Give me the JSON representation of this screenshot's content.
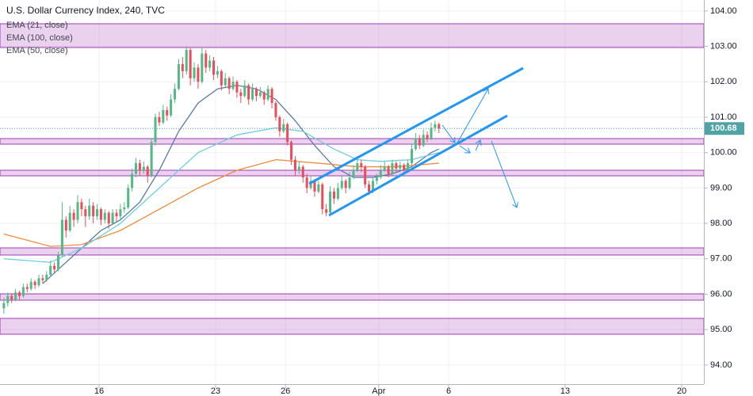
{
  "chart_data": {
    "type": "candlestick",
    "title": "U.S. Dollar Currency Index, 240, TVC",
    "xlim": [
      -1,
      180.2
    ],
    "xticks": [
      {
        "value": 24.5,
        "label": "16"
      },
      {
        "value": 54.5,
        "label": "23"
      },
      {
        "value": 72.5,
        "label": "26"
      },
      {
        "value": 96.5,
        "label": "Apr"
      },
      {
        "value": 114.5,
        "label": "6"
      },
      {
        "value": 144.5,
        "label": "13"
      },
      {
        "value": 174.5,
        "label": "20"
      }
    ],
    "ylim": [
      93.46,
      104.31
    ],
    "yticks": [
      {
        "value": 94,
        "label": "94.00"
      },
      {
        "value": 95,
        "label": "95.00"
      },
      {
        "value": 96,
        "label": "96.00"
      },
      {
        "value": 97,
        "label": "97.00"
      },
      {
        "value": 98,
        "label": "98.00"
      },
      {
        "value": 99,
        "label": "99.00"
      },
      {
        "value": 100,
        "label": "100.00"
      },
      {
        "value": 101,
        "label": "101.00"
      },
      {
        "value": 102,
        "label": "102.00"
      },
      {
        "value": 103,
        "label": "103.00"
      },
      {
        "value": 104,
        "label": "104.00"
      }
    ],
    "grid": true,
    "up_color": "#53b987",
    "down_color": "#eb4d5c",
    "last_price_color": "#4fa3a5",
    "x": [
      0,
      1,
      2,
      3,
      4,
      5,
      6,
      7,
      8,
      9,
      10,
      11,
      12,
      13,
      14,
      15,
      16,
      17,
      18,
      19,
      20,
      21,
      22,
      23,
      24,
      25,
      26,
      27,
      28,
      29,
      30,
      31,
      32,
      33,
      34,
      35,
      36,
      37,
      38,
      39,
      40,
      41,
      42,
      43,
      44,
      45,
      46,
      47,
      48,
      49,
      50,
      51,
      52,
      53,
      54,
      55,
      56,
      57,
      58,
      59,
      60,
      61,
      62,
      63,
      64,
      65,
      66,
      67,
      68,
      69,
      70,
      71,
      72,
      73,
      74,
      75,
      76,
      77,
      78,
      79,
      80,
      81,
      82,
      83,
      84,
      85,
      86,
      87,
      88,
      89,
      90,
      91,
      92,
      93,
      94,
      95,
      96,
      97,
      98,
      99,
      100,
      101,
      102,
      103,
      104,
      105,
      106,
      107,
      108,
      109,
      110,
      111,
      112
    ],
    "ohlc": [
      [
        95.6,
        95.9,
        95.45,
        95.75
      ],
      [
        95.75,
        96.05,
        95.65,
        95.95
      ],
      [
        95.95,
        96.0,
        95.75,
        95.85
      ],
      [
        95.85,
        96.15,
        95.8,
        96.05
      ],
      [
        96.05,
        96.1,
        95.85,
        95.95
      ],
      [
        95.95,
        96.3,
        95.9,
        96.2
      ],
      [
        96.2,
        96.3,
        96.05,
        96.15
      ],
      [
        96.15,
        96.45,
        96.1,
        96.35
      ],
      [
        96.35,
        96.4,
        96.15,
        96.25
      ],
      [
        96.25,
        96.55,
        96.2,
        96.45
      ],
      [
        96.45,
        96.55,
        96.3,
        96.4
      ],
      [
        96.4,
        96.65,
        96.35,
        96.55
      ],
      [
        96.55,
        96.95,
        96.5,
        96.8
      ],
      [
        96.8,
        96.9,
        96.6,
        96.7
      ],
      [
        96.7,
        97.2,
        96.65,
        97.1
      ],
      [
        97.1,
        98.6,
        97.05,
        98.1
      ],
      [
        98.1,
        98.2,
        97.6,
        97.8
      ],
      [
        97.8,
        98.5,
        97.75,
        98.3
      ],
      [
        98.3,
        98.4,
        97.9,
        98.1
      ],
      [
        98.1,
        98.8,
        98.0,
        98.6
      ],
      [
        98.6,
        98.7,
        98.2,
        98.4
      ],
      [
        98.4,
        98.5,
        97.9,
        98.2
      ],
      [
        98.2,
        98.7,
        98.1,
        98.5
      ],
      [
        98.5,
        98.6,
        98.0,
        98.2
      ],
      [
        98.2,
        98.55,
        98.1,
        98.4
      ],
      [
        98.4,
        98.45,
        97.95,
        98.1
      ],
      [
        98.1,
        98.4,
        98.0,
        98.3
      ],
      [
        98.3,
        98.35,
        97.85,
        98.0
      ],
      [
        98.0,
        98.4,
        97.95,
        98.3
      ],
      [
        98.3,
        98.4,
        98.05,
        98.2
      ],
      [
        98.2,
        98.55,
        98.1,
        98.4
      ],
      [
        98.4,
        98.6,
        98.3,
        98.45
      ],
      [
        98.45,
        99.1,
        98.4,
        99.0
      ],
      [
        99.0,
        99.55,
        98.9,
        99.4
      ],
      [
        99.4,
        99.85,
        99.3,
        99.7
      ],
      [
        99.7,
        99.8,
        99.35,
        99.5
      ],
      [
        99.5,
        99.75,
        99.4,
        99.6
      ],
      [
        99.6,
        99.65,
        99.15,
        99.35
      ],
      [
        99.35,
        100.4,
        99.3,
        100.3
      ],
      [
        100.3,
        101.1,
        100.2,
        101.0
      ],
      [
        101.0,
        101.15,
        100.75,
        100.85
      ],
      [
        100.85,
        101.35,
        100.8,
        101.2
      ],
      [
        101.2,
        101.3,
        100.9,
        101.05
      ],
      [
        101.05,
        101.65,
        101.0,
        101.5
      ],
      [
        101.5,
        101.95,
        101.4,
        101.8
      ],
      [
        101.8,
        102.65,
        101.75,
        102.5
      ],
      [
        102.5,
        102.7,
        102.1,
        102.3
      ],
      [
        102.3,
        103.0,
        102.2,
        102.9
      ],
      [
        102.9,
        102.95,
        101.9,
        102.1
      ],
      [
        102.1,
        102.55,
        102.0,
        102.4
      ],
      [
        102.4,
        102.5,
        101.8,
        102.0
      ],
      [
        102.0,
        102.95,
        101.95,
        102.8
      ],
      [
        102.8,
        102.9,
        102.25,
        102.4
      ],
      [
        102.4,
        102.75,
        102.3,
        102.6
      ],
      [
        102.6,
        102.7,
        102.05,
        102.2
      ],
      [
        102.2,
        102.45,
        102.1,
        102.3
      ],
      [
        102.3,
        102.35,
        101.75,
        101.9
      ],
      [
        101.9,
        102.25,
        101.85,
        102.1
      ],
      [
        102.1,
        102.15,
        101.65,
        101.8
      ],
      [
        101.8,
        102.15,
        101.75,
        102.0
      ],
      [
        102.0,
        102.05,
        101.55,
        101.7
      ],
      [
        101.7,
        101.8,
        101.4,
        101.6
      ],
      [
        101.6,
        102.05,
        101.55,
        101.9
      ],
      [
        101.9,
        101.95,
        101.35,
        101.5
      ],
      [
        101.5,
        101.95,
        101.45,
        101.8
      ],
      [
        101.8,
        101.85,
        101.45,
        101.6
      ],
      [
        101.6,
        101.85,
        101.55,
        101.7
      ],
      [
        101.7,
        101.75,
        101.35,
        101.5
      ],
      [
        101.5,
        101.9,
        101.45,
        101.8
      ],
      [
        101.8,
        101.85,
        101.25,
        101.4
      ],
      [
        101.4,
        101.45,
        100.9,
        101.0
      ],
      [
        101.0,
        101.05,
        100.45,
        100.6
      ],
      [
        100.6,
        100.95,
        100.55,
        100.8
      ],
      [
        100.8,
        100.85,
        100.2,
        100.3
      ],
      [
        100.3,
        100.35,
        99.65,
        99.8
      ],
      [
        99.8,
        99.9,
        99.35,
        99.5
      ],
      [
        99.5,
        99.75,
        99.4,
        99.6
      ],
      [
        99.6,
        99.65,
        99.15,
        99.3
      ],
      [
        99.3,
        99.4,
        98.85,
        99.0
      ],
      [
        99.0,
        99.35,
        98.95,
        99.2
      ],
      [
        99.2,
        99.25,
        98.75,
        98.9
      ],
      [
        98.9,
        99.2,
        98.85,
        99.1
      ],
      [
        99.1,
        99.15,
        98.25,
        98.4
      ],
      [
        98.4,
        98.55,
        98.2,
        98.3
      ],
      [
        98.3,
        99.05,
        98.25,
        98.9
      ],
      [
        98.9,
        99.0,
        98.55,
        98.7
      ],
      [
        98.7,
        99.15,
        98.65,
        99.0
      ],
      [
        99.0,
        99.35,
        98.95,
        99.2
      ],
      [
        99.2,
        99.25,
        98.85,
        99.0
      ],
      [
        99.0,
        99.45,
        98.95,
        99.3
      ],
      [
        99.3,
        99.65,
        99.25,
        99.5
      ],
      [
        99.5,
        99.9,
        99.45,
        99.7
      ],
      [
        99.7,
        99.8,
        99.45,
        99.6
      ],
      [
        99.6,
        99.65,
        99.0,
        99.1
      ],
      [
        99.1,
        99.2,
        98.8,
        98.9
      ],
      [
        98.9,
        99.3,
        98.85,
        99.2
      ],
      [
        99.2,
        99.4,
        99.1,
        99.3
      ],
      [
        99.3,
        99.65,
        99.25,
        99.5
      ],
      [
        99.5,
        99.75,
        99.45,
        99.6
      ],
      [
        99.6,
        99.65,
        99.3,
        99.4
      ],
      [
        99.4,
        99.8,
        99.35,
        99.7
      ],
      [
        99.7,
        99.75,
        99.45,
        99.55
      ],
      [
        99.55,
        99.75,
        99.5,
        99.65
      ],
      [
        99.65,
        99.7,
        99.4,
        99.5
      ],
      [
        99.5,
        99.8,
        99.45,
        99.7
      ],
      [
        99.7,
        100.25,
        99.65,
        100.1
      ],
      [
        100.1,
        100.55,
        100.05,
        100.4
      ],
      [
        100.4,
        100.5,
        100.1,
        100.2
      ],
      [
        100.2,
        100.65,
        100.15,
        100.5
      ],
      [
        100.5,
        100.6,
        100.3,
        100.4
      ],
      [
        100.4,
        100.85,
        100.35,
        100.7
      ],
      [
        100.7,
        100.9,
        100.6,
        100.8
      ],
      [
        100.8,
        100.85,
        100.55,
        100.68
      ]
    ],
    "series": [
      {
        "name": "EMA (21, close)",
        "color": "#5b7aa8",
        "x": [
          10,
          15,
          20,
          25,
          30,
          35,
          40,
          45,
          50,
          55,
          60,
          65,
          70,
          75,
          80,
          85,
          90,
          95,
          100,
          105,
          110,
          112
        ],
        "values": [
          96.3,
          96.8,
          97.3,
          97.8,
          98.1,
          98.6,
          99.5,
          100.6,
          101.4,
          101.8,
          101.9,
          101.8,
          101.5,
          100.9,
          100.2,
          99.6,
          99.3,
          99.3,
          99.4,
          99.6,
          100.0,
          100.1
        ]
      },
      {
        "name": "EMA (100, close)",
        "color": "#f08a3c",
        "x": [
          0,
          12,
          20,
          30,
          40,
          50,
          60,
          70,
          81,
          91,
          101,
          112
        ],
        "values": [
          97.7,
          97.35,
          97.4,
          97.8,
          98.4,
          99.0,
          99.5,
          99.8,
          99.7,
          99.6,
          99.6,
          99.7
        ]
      },
      {
        "name": "EMA (50, close)",
        "color": "#6fcde0",
        "x": [
          0,
          12,
          20,
          30,
          40,
          50,
          60,
          70,
          77,
          85,
          91,
          97,
          105,
          112
        ],
        "values": [
          97.0,
          96.9,
          97.3,
          98.0,
          99.0,
          100.0,
          100.5,
          100.7,
          100.6,
          100.1,
          99.8,
          99.75,
          99.8,
          100.0
        ]
      }
    ]
  }
}
